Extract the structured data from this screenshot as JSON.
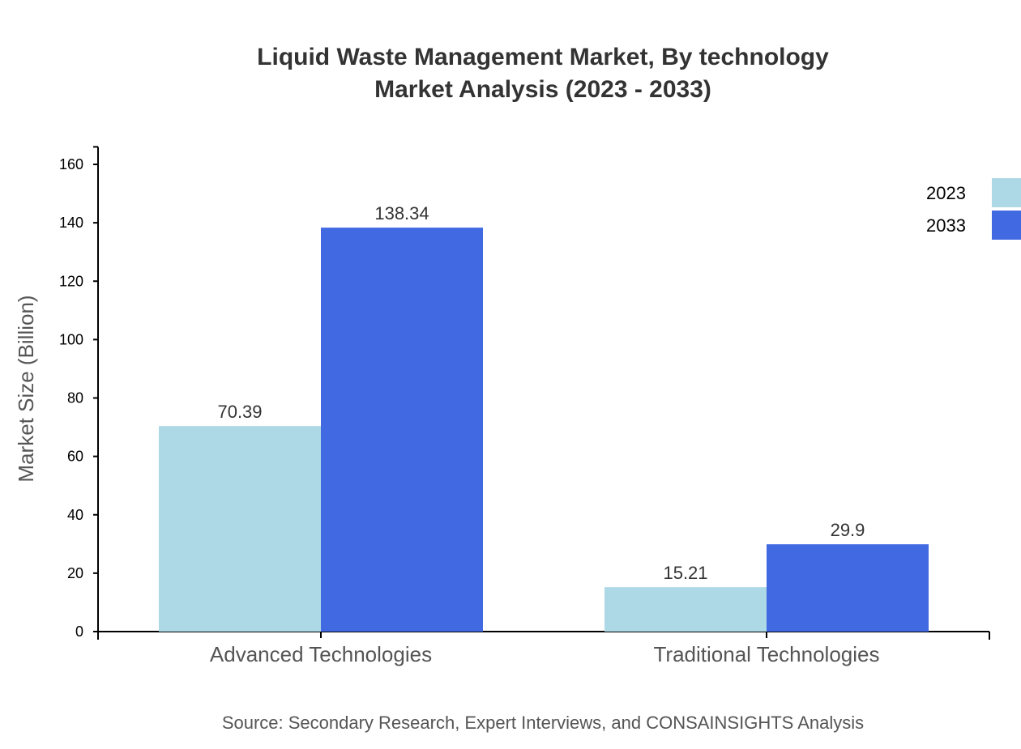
{
  "chart_data": {
    "type": "bar",
    "title": "Liquid Waste Management Market, By technology",
    "subtitle": "Market Analysis (2023 - 2033)",
    "xlabel": "",
    "ylabel": "Market Size (Billion)",
    "ylim": [
      0,
      166
    ],
    "yticks": [
      0,
      20,
      40,
      60,
      80,
      100,
      120,
      140,
      160
    ],
    "categories": [
      "Advanced Technologies",
      "Traditional Technologies"
    ],
    "series": [
      {
        "name": "2023",
        "color": "#add8e6",
        "values": [
          70.39,
          15.21
        ],
        "labels": [
          "70.39",
          "15.21"
        ]
      },
      {
        "name": "2033",
        "color": "#4169e1",
        "values": [
          138.34,
          29.9
        ],
        "labels": [
          "138.34",
          "29.9"
        ]
      }
    ],
    "legend_position": "top-right",
    "grid": false,
    "source": "Source: Secondary Research, Expert Interviews, and CONSAINSIGHTS Analysis"
  }
}
